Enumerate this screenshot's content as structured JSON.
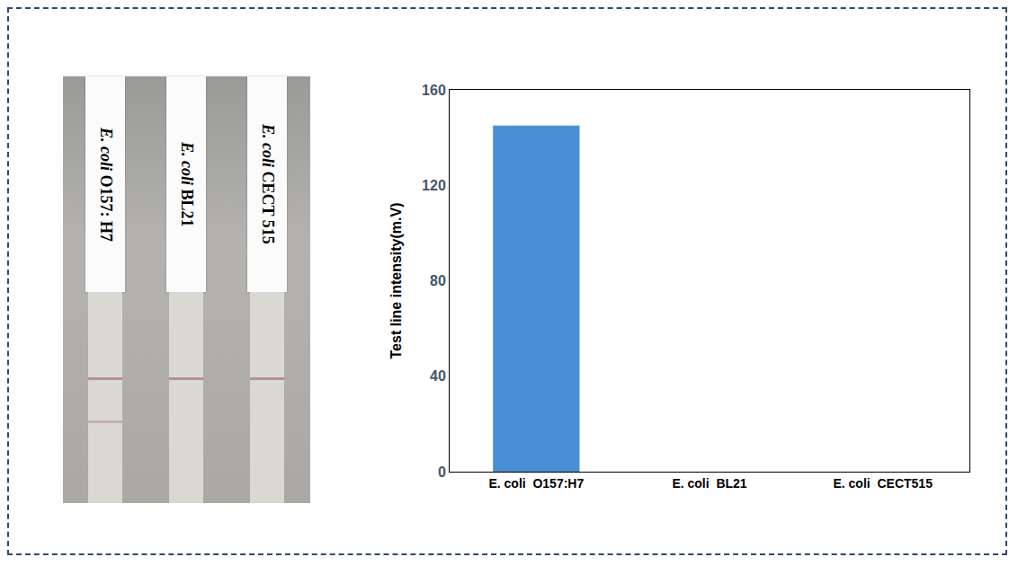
{
  "strips": [
    {
      "label": "E. coli O157: H7",
      "control_line": true,
      "test_line": true
    },
    {
      "label": "E. coli BL21",
      "control_line": true,
      "test_line": false
    },
    {
      "label": "E. coli CECT 515",
      "control_line": true,
      "test_line": false
    }
  ],
  "chart_data": {
    "type": "bar",
    "categories": [
      "E. coli  O157:H7",
      "E. coli  BL21",
      "E. coli  CECT515"
    ],
    "values": [
      145,
      0,
      0
    ],
    "color": "#4a8fd6",
    "y_label": "Test line intensity(m.V)",
    "ylim": [
      0,
      160
    ],
    "yticks": [
      0,
      40,
      80,
      120,
      160
    ],
    "grid": false
  }
}
